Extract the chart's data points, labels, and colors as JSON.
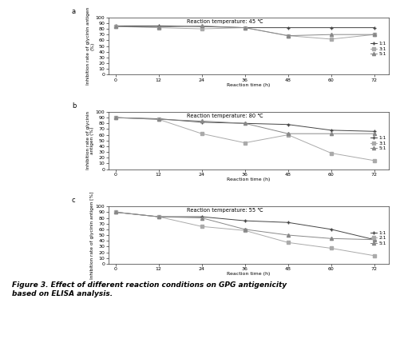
{
  "x": [
    0,
    12,
    24,
    36,
    48,
    60,
    72
  ],
  "panel_a": {
    "title": "Reaction temperature: 45 ℃",
    "label": "a",
    "series": {
      "1:1": [
        85,
        85,
        84,
        82,
        82,
        82,
        82
      ],
      "3:1": [
        84,
        82,
        80,
        82,
        68,
        62,
        70
      ],
      "5:1": [
        84,
        83,
        85,
        82,
        68,
        70,
        70
      ]
    },
    "legend_labels": [
      "1:1",
      "3:1",
      "5:1"
    ],
    "ylim": [
      0,
      100
    ],
    "yticks": [
      0,
      10,
      20,
      30,
      40,
      50,
      60,
      70,
      80,
      90,
      100
    ]
  },
  "panel_b": {
    "title": "Reaction temperature: 80 ℃",
    "label": "b",
    "series": {
      "1:1": [
        90,
        88,
        82,
        80,
        78,
        68,
        66
      ],
      "3:1": [
        90,
        87,
        62,
        46,
        60,
        28,
        15
      ],
      "5:1": [
        90,
        87,
        84,
        80,
        62,
        62,
        62
      ]
    },
    "legend_labels": [
      "1:1",
      "3:1",
      "5:1"
    ],
    "ylim": [
      0,
      100
    ],
    "yticks": [
      0,
      10,
      20,
      30,
      40,
      50,
      60,
      70,
      80,
      90,
      100
    ]
  },
  "panel_c": {
    "title": "Reaction temperature: 55 ℃",
    "label": "c",
    "series": {
      "1:1": [
        90,
        82,
        82,
        75,
        72,
        60,
        42
      ],
      "2:1": [
        90,
        82,
        65,
        58,
        37,
        27,
        14
      ],
      "5:1": [
        90,
        82,
        80,
        60,
        50,
        44,
        42
      ]
    },
    "legend_labels": [
      "1:1",
      "2:1",
      "5:1"
    ],
    "ylim": [
      0,
      100
    ],
    "yticks": [
      0,
      10,
      20,
      30,
      40,
      50,
      60,
      70,
      80,
      90,
      100
    ]
  },
  "xlabel": "Reaction time (h)",
  "xticks": [
    0,
    12,
    24,
    36,
    48,
    60,
    72
  ],
  "line_colors": [
    "#444444",
    "#aaaaaa",
    "#888888"
  ],
  "markers": [
    "+",
    "s",
    "^"
  ],
  "figure_bg": "#ffffff",
  "panel_bg": "#ffffff",
  "caption": "Figure 3. Effect of different reaction conditions on GPG antigenicity\nbased on ELISA analysis."
}
